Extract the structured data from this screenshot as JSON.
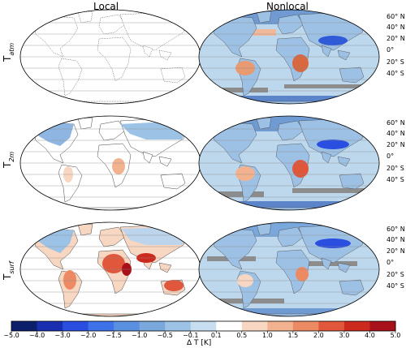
{
  "columns": [
    "Local",
    "Nonlocal"
  ],
  "rows": [
    {
      "base": "T",
      "sub": "atm"
    },
    {
      "base": "T",
      "sub": "2m"
    },
    {
      "base": "T",
      "sub": "surf"
    }
  ],
  "latitude_labels": [
    "60° N",
    "40° N",
    "20° N",
    "0°",
    "20° S",
    "40° S"
  ],
  "colorbar": {
    "label": "Δ T [K]",
    "ticks": [
      "−5.0",
      "−4.0",
      "−3.0",
      "−2.0",
      "−1.5",
      "−1.0",
      "−0.5",
      "−0.1",
      "0.1",
      "0.5",
      "1.0",
      "1.5",
      "2.0",
      "3.0",
      "4.0",
      "5.0"
    ],
    "colors": [
      "#0b1f6b",
      "#1a2fb0",
      "#2a4fe0",
      "#3d72e8",
      "#5b8fe0",
      "#7aa8dc",
      "#9cc3e6",
      "#c7ddf0",
      "#ffffff",
      "#f7d6c2",
      "#f2b28f",
      "#ec8a64",
      "#e0573c",
      "#cc2a1e",
      "#a8101a"
    ]
  },
  "colors": {
    "ocean_nonlocal": "#bdd7ec",
    "land_local": "#ffffff",
    "gray_band": "#8c8c8c"
  }
}
